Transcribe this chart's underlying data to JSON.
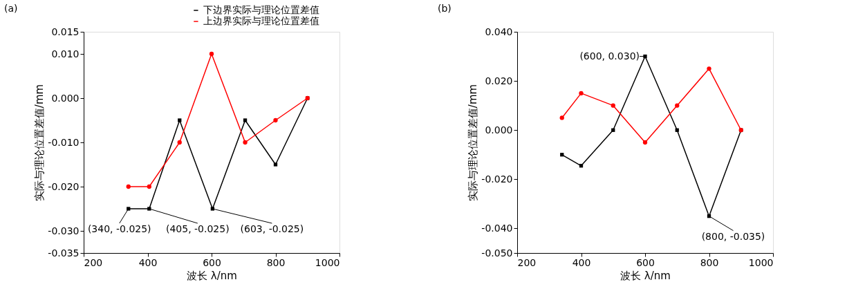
{
  "chart_data": [
    {
      "type": "line",
      "xlabel": "波长 λ/nm",
      "ylabel": "实际与理论位置差值/mm",
      "legend": "top",
      "annotations": [
        "(a)",
        {
          "text": "(340, -0.025)",
          "x": 340,
          "y": -0.025
        },
        {
          "text": "(405, -0.025)",
          "x": 405,
          "y": -0.025
        },
        {
          "text": "(603, -0.025)",
          "x": 603,
          "y": -0.025
        }
      ],
      "series": [
        {
          "name": "下边界实际与理论位置差值",
          "color": "#000000",
          "marker": "square",
          "x": [
            340,
            405,
            500,
            603,
            705,
            800,
            900
          ],
          "values": [
            -0.025,
            -0.025,
            -0.005,
            -0.025,
            -0.005,
            -0.015,
            0.0
          ]
        },
        {
          "name": "上边界实际与理论位置差值",
          "color": "#ff0000",
          "marker": "circle",
          "x": [
            340,
            405,
            500,
            600,
            705,
            800,
            900
          ],
          "values": [
            -0.02,
            -0.02,
            -0.01,
            0.01,
            -0.01,
            -0.005,
            0.0
          ]
        }
      ],
      "xlim": [
        200,
        1000
      ],
      "xticks": [
        200,
        400,
        600,
        800,
        1000
      ],
      "ylim": [
        -0.035,
        0.015
      ],
      "yticks": [
        {
          "value": 0.015,
          "label": "0.015"
        },
        {
          "value": 0.01,
          "label": "0.010"
        },
        {
          "value": 0.0,
          "label": "0.000"
        },
        {
          "value": -0.01,
          "label": "-0.010"
        },
        {
          "value": -0.02,
          "label": "-0.020"
        },
        {
          "value": -0.03,
          "label": "-0.030"
        },
        {
          "value": -0.035,
          "label": "-0.035"
        }
      ]
    },
    {
      "type": "line",
      "xlabel": "波长 λ/nm",
      "ylabel": "实际与理论位置差值/mm",
      "legend": "top",
      "annotations": [
        "(b)",
        {
          "text": "(600, 0.030)",
          "x": 600,
          "y": 0.03
        },
        {
          "text": "(800, -0.035)",
          "x": 800,
          "y": -0.035
        }
      ],
      "series": [
        {
          "name": "下边界实际与理论位置差值",
          "color": "#000000",
          "marker": "square",
          "x": [
            340,
            400,
            500,
            600,
            700,
            800,
            900
          ],
          "values": [
            -0.01,
            -0.0145,
            0.0,
            0.03,
            0.0,
            -0.035,
            0.0
          ]
        },
        {
          "name": "上边界实际与理论位置差值",
          "color": "#ff0000",
          "marker": "circle",
          "x": [
            340,
            400,
            500,
            600,
            700,
            800,
            900
          ],
          "values": [
            0.005,
            0.015,
            0.01,
            -0.005,
            0.01,
            0.025,
            0.0
          ]
        }
      ],
      "xlim": [
        200,
        1000
      ],
      "xticks": [
        200,
        400,
        600,
        800,
        1000
      ],
      "ylim": [
        -0.05,
        0.04
      ],
      "yticks": [
        {
          "value": 0.04,
          "label": "0.040"
        },
        {
          "value": 0.02,
          "label": "0.020"
        },
        {
          "value": 0.0,
          "label": "0.000"
        },
        {
          "value": -0.02,
          "label": "-0.020"
        },
        {
          "value": -0.04,
          "label": "-0.040"
        },
        {
          "value": -0.05,
          "label": "-0.050"
        }
      ]
    }
  ]
}
